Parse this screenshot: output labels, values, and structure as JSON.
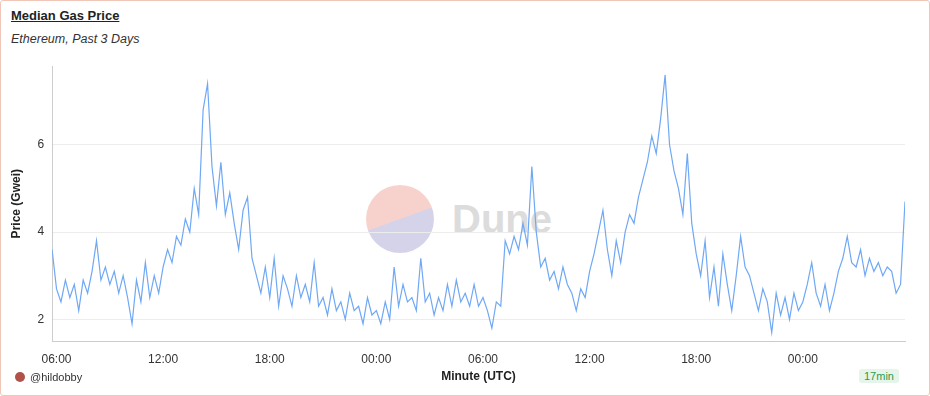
{
  "chart_data": {
    "type": "line",
    "title": "Median Gas Price",
    "subtitle": "Ethereum, Past 3 Days",
    "x_label": "Minute (UTC)",
    "y_label": "Price (Gwei)",
    "watermark": "Dune",
    "author": "@hildobby",
    "refresh": "17min",
    "color": "#6fa8f5",
    "grid": true,
    "xlim": [
      5.75,
      53.75
    ],
    "xticks": [
      {
        "value": 6,
        "label": "06:00"
      },
      {
        "value": 12,
        "label": "12:00"
      },
      {
        "value": 18,
        "label": "18:00"
      },
      {
        "value": 24,
        "label": "00:00"
      },
      {
        "value": 30,
        "label": "06:00"
      },
      {
        "value": 36,
        "label": "12:00"
      },
      {
        "value": 42,
        "label": "18:00"
      },
      {
        "value": 48,
        "label": "00:00"
      }
    ],
    "ylim": [
      1.5,
      7.8
    ],
    "yticks": [
      2,
      4,
      6
    ],
    "x": [
      5.75,
      6,
      6.25,
      6.5,
      6.75,
      7,
      7.25,
      7.5,
      7.75,
      8,
      8.25,
      8.5,
      8.75,
      9,
      9.25,
      9.5,
      9.75,
      10,
      10.25,
      10.5,
      10.75,
      11,
      11.25,
      11.5,
      11.75,
      12,
      12.25,
      12.5,
      12.75,
      13,
      13.25,
      13.5,
      13.75,
      14,
      14.25,
      14.5,
      14.75,
      15,
      15.25,
      15.5,
      15.75,
      16,
      16.25,
      16.5,
      16.75,
      17,
      17.25,
      17.5,
      17.75,
      18,
      18.25,
      18.5,
      18.75,
      19,
      19.25,
      19.5,
      19.75,
      20,
      20.25,
      20.5,
      20.75,
      21,
      21.25,
      21.5,
      21.75,
      22,
      22.25,
      22.5,
      22.75,
      23,
      23.25,
      23.5,
      23.75,
      24,
      24.25,
      24.5,
      24.75,
      25,
      25.25,
      25.5,
      25.75,
      26,
      26.25,
      26.5,
      26.75,
      27,
      27.25,
      27.5,
      27.75,
      28,
      28.25,
      28.5,
      28.75,
      29,
      29.25,
      29.5,
      29.75,
      30,
      30.25,
      30.5,
      30.75,
      31,
      31.25,
      31.5,
      31.75,
      32,
      32.25,
      32.5,
      32.75,
      33,
      33.25,
      33.5,
      33.75,
      34,
      34.25,
      34.5,
      34.75,
      35,
      35.25,
      35.5,
      35.75,
      36,
      36.25,
      36.5,
      36.75,
      37,
      37.25,
      37.5,
      37.75,
      38,
      38.25,
      38.5,
      38.75,
      39,
      39.25,
      39.5,
      39.75,
      40,
      40.25,
      40.5,
      40.75,
      41,
      41.25,
      41.5,
      41.75,
      42,
      42.25,
      42.5,
      42.75,
      43,
      43.25,
      43.5,
      43.75,
      44,
      44.25,
      44.5,
      44.75,
      45,
      45.25,
      45.5,
      45.75,
      46,
      46.25,
      46.5,
      46.75,
      47,
      47.25,
      47.5,
      47.75,
      48,
      48.25,
      48.5,
      48.75,
      49,
      49.25,
      49.5,
      49.75,
      50,
      50.25,
      50.5,
      50.75,
      51,
      51.25,
      51.5,
      51.75,
      52,
      52.25,
      52.5,
      52.75,
      53,
      53.25,
      53.5,
      53.75
    ],
    "values": [
      3.6,
      2.7,
      2.4,
      2.9,
      2.5,
      2.8,
      2.2,
      2.9,
      2.6,
      3.1,
      3.8,
      2.9,
      3.2,
      2.8,
      3.1,
      2.6,
      3.0,
      2.5,
      1.9,
      2.9,
      2.4,
      3.3,
      2.5,
      3.0,
      2.6,
      3.2,
      3.6,
      3.3,
      3.9,
      3.7,
      4.3,
      4.0,
      5.0,
      4.4,
      6.8,
      7.4,
      5.5,
      4.6,
      5.6,
      4.4,
      4.9,
      4.2,
      3.6,
      4.5,
      4.8,
      3.4,
      3.0,
      2.6,
      3.2,
      2.5,
      3.4,
      2.3,
      3.0,
      2.7,
      2.3,
      3.0,
      2.5,
      2.8,
      2.4,
      3.3,
      2.3,
      2.5,
      2.1,
      2.7,
      2.2,
      2.4,
      2.0,
      2.6,
      2.2,
      2.3,
      1.9,
      2.5,
      2.1,
      2.2,
      1.9,
      2.4,
      2.0,
      3.2,
      2.3,
      2.8,
      2.4,
      2.5,
      2.2,
      3.4,
      2.4,
      2.6,
      2.1,
      2.5,
      2.2,
      2.8,
      2.3,
      2.9,
      2.4,
      2.6,
      2.3,
      2.8,
      2.3,
      2.5,
      2.2,
      1.8,
      2.4,
      2.3,
      3.8,
      3.5,
      3.9,
      3.6,
      4.2,
      3.7,
      5.5,
      4.0,
      3.2,
      3.4,
      2.9,
      3.1,
      2.7,
      3.2,
      2.8,
      2.6,
      2.2,
      2.7,
      2.5,
      3.1,
      3.5,
      4.0,
      4.5,
      3.6,
      3.0,
      3.8,
      3.3,
      4.0,
      4.4,
      4.2,
      4.8,
      5.2,
      5.6,
      6.2,
      5.8,
      6.6,
      7.6,
      6.0,
      5.4,
      5.0,
      4.4,
      5.8,
      4.2,
      3.5,
      3.0,
      3.8,
      2.5,
      3.2,
      2.3,
      3.5,
      2.8,
      2.2,
      3.0,
      3.9,
      3.2,
      3.0,
      2.6,
      2.2,
      2.7,
      2.4,
      1.7,
      2.6,
      2.1,
      2.5,
      2.0,
      2.6,
      2.2,
      2.4,
      2.8,
      3.3,
      2.6,
      2.3,
      2.8,
      2.2,
      2.6,
      3.1,
      3.4,
      3.9,
      3.3,
      3.2,
      3.6,
      3.0,
      3.4,
      3.1,
      3.3,
      3.0,
      3.2,
      3.1,
      2.6,
      2.8,
      4.7
    ]
  }
}
